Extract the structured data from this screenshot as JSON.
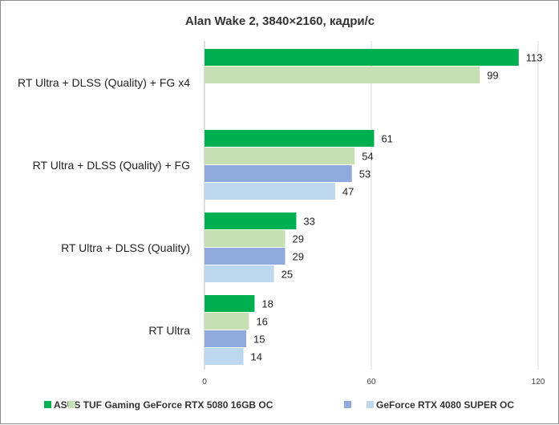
{
  "chart_data": {
    "type": "bar",
    "orientation": "horizontal",
    "title": "Alan Wake 2, 3840×2160, кадри/с",
    "categories": [
      "RT Ultra + DLSS (Quality) + FG x4",
      "RT Ultra + DLSS (Quality) + FG",
      "RT Ultra + DLSS (Quality)",
      "RT Ultra"
    ],
    "series": [
      {
        "name": "ASUS TUF Gaming GeForce RTX 5080 16GB OC",
        "color": "#00b050",
        "values": [
          113,
          61,
          33,
          18
        ]
      },
      {
        "name": "",
        "color": "#c6e0b4",
        "values": [
          99,
          54,
          29,
          16
        ]
      },
      {
        "name": "",
        "color": "#8faadc",
        "values": [
          null,
          53,
          29,
          15
        ]
      },
      {
        "name": "GeForce RTX 4080 SUPER OC",
        "color": "#bdd7ee",
        "values": [
          null,
          47,
          25,
          14
        ]
      }
    ],
    "xlim": [
      0,
      120
    ],
    "xticks": [
      "0",
      "60",
      "120"
    ],
    "grid": "vertical",
    "legend_position": "bottom"
  }
}
